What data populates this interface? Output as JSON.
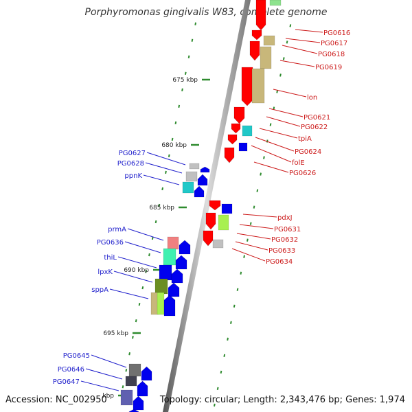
{
  "title": "Porphyromonas gingivalis W83, complete genome",
  "accession": "Accession: NC_002950",
  "topology": "Topology: circular; Length: 2,343,476 bp; Genes: 1,974",
  "colors": {
    "backbone": "#8c8c8c",
    "ticks": "#2e8b2e",
    "label_forward": "#2020cc",
    "label_reverse": "#cc1a1a",
    "reverse_gene": "#ff0000",
    "forward_gene": "#0000ee"
  },
  "position_labels": [
    "675 kbp",
    "680 kbp",
    "685 kbp",
    "690 kbp",
    "695 kbp",
    "kbp"
  ],
  "genes_right": [
    "PG0616",
    "PG0617",
    "PG0618",
    "PG0619",
    "lon",
    "PG0621",
    "PG0622",
    "tpiA",
    "PG0624",
    "folE",
    "PG0626"
  ],
  "genes_right_lower": [
    "pdxJ",
    "PG0631",
    "PG0632",
    "PG0633",
    "PG0634"
  ],
  "genes_left": [
    "PG0627",
    "PG0628",
    "ppnK",
    "prmA",
    "PG0636",
    "thiL",
    "lpxK",
    "sppA",
    "PG0645",
    "PG0646",
    "PG0647"
  ]
}
